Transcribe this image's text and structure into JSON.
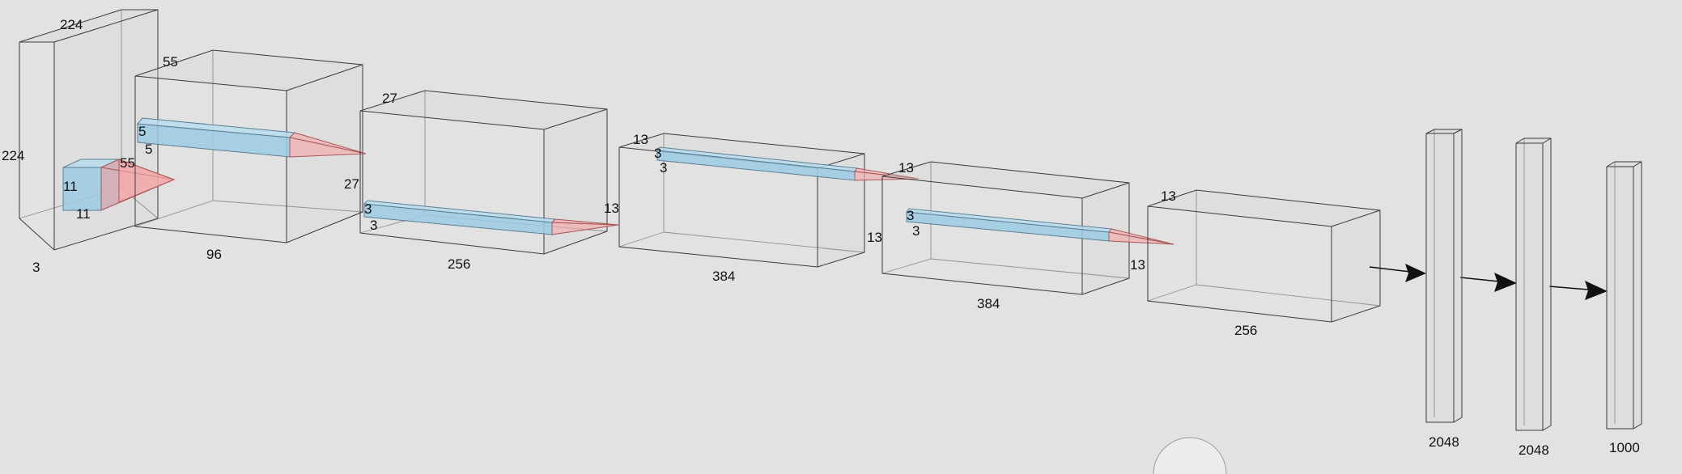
{
  "layers": [
    {
      "id": "input",
      "height_label": "224",
      "width_label": "224",
      "depth_label": "3"
    },
    {
      "id": "conv1",
      "size_label": "55",
      "size_label_2": "27",
      "depth_label": "96"
    },
    {
      "id": "conv2",
      "size_label": "27",
      "size_label_2": "13",
      "depth_label": "256"
    },
    {
      "id": "conv3",
      "size_label": "13",
      "size_label_2": "13",
      "depth_label": "384"
    },
    {
      "id": "conv4",
      "size_label": "13",
      "size_label_2": "13",
      "depth_label": "384"
    },
    {
      "id": "conv5",
      "size_label": "13",
      "depth_label": "256"
    },
    {
      "id": "fc6",
      "units_label": "2048"
    },
    {
      "id": "fc7",
      "units_label": "2048"
    },
    {
      "id": "fc8",
      "units_label": "1000"
    }
  ],
  "kernels": [
    {
      "id": "k1",
      "a": "11",
      "b": "11",
      "target": "55"
    },
    {
      "id": "k2",
      "a": "5",
      "b": "5"
    },
    {
      "id": "k3",
      "a": "3",
      "b": "3"
    },
    {
      "id": "k4",
      "a": "3",
      "b": "3"
    },
    {
      "id": "k5",
      "a": "3",
      "b": "3"
    }
  ]
}
